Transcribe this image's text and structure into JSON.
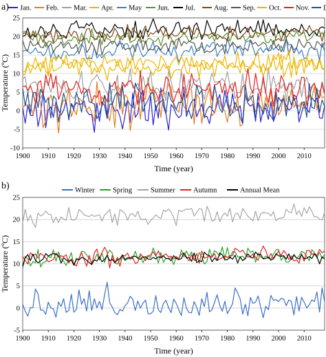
{
  "chart_data": [
    {
      "panel_label": "a)",
      "type": "line",
      "xlabel": "Time (year)",
      "ylabel": "Temperature (ºC)",
      "xlim": [
        1900,
        2018
      ],
      "ylim": [
        -10,
        25
      ],
      "x_ticks": [
        1900,
        1910,
        1920,
        1930,
        1940,
        1950,
        1960,
        1970,
        1980,
        1990,
        2000,
        2010
      ],
      "y_ticks": [
        -10,
        -5,
        0,
        5,
        10,
        15,
        20,
        25
      ],
      "grid": "horizontal",
      "legend_position": "top",
      "series": [
        {
          "name": "Jan.",
          "color": "#2b1fd1",
          "mean": 0,
          "amp": 2.5
        },
        {
          "name": "Feb.",
          "color": "#e67e22",
          "mean": 1.5,
          "amp": 2.8
        },
        {
          "name": "Mar.",
          "color": "#a0a0a0",
          "mean": 6,
          "amp": 2.2
        },
        {
          "name": "Apr.",
          "color": "#e6b800",
          "mean": 11.5,
          "amp": 1.4
        },
        {
          "name": "May",
          "color": "#3a7fc1",
          "mean": 16,
          "amp": 1.3
        },
        {
          "name": "Jun.",
          "color": "#5f8f2a",
          "mean": 19.5,
          "amp": 1.2
        },
        {
          "name": "Jul.",
          "color": "#000000",
          "mean": 21.5,
          "amp": 1.2
        },
        {
          "name": "Aug.",
          "color": "#7a4a1a",
          "mean": 20.5,
          "amp": 1.2
        },
        {
          "name": "Sep.",
          "color": "#555555",
          "mean": 17,
          "amp": 1.2
        },
        {
          "name": "Oct.",
          "color": "#f0b400",
          "mean": 12,
          "amp": 1.6
        },
        {
          "name": "Nov.",
          "color": "#e02020",
          "mean": 5.5,
          "amp": 2.2
        },
        {
          "name": "Dec.",
          "color": "#1f4e8c",
          "mean": 1.5,
          "amp": 2.5
        }
      ]
    },
    {
      "panel_label": "b)",
      "type": "line",
      "xlabel": "Time (year)",
      "ylabel": "Temperature (ºC)",
      "xlim": [
        1900,
        2018
      ],
      "ylim": [
        -5,
        25
      ],
      "x_ticks": [
        1900,
        1910,
        1920,
        1930,
        1940,
        1950,
        1960,
        1970,
        1980,
        1990,
        2000,
        2010
      ],
      "y_ticks": [
        -5,
        0,
        5,
        10,
        15,
        20,
        25
      ],
      "grid": "horizontal",
      "legend_position": "top",
      "series": [
        {
          "name": "Winter",
          "color": "#3a6fc4",
          "mean": 1.0,
          "amp": 1.8
        },
        {
          "name": "Spring",
          "color": "#2ca02c",
          "mean": 11.3,
          "amp": 0.9
        },
        {
          "name": "Summer",
          "color": "#a6a6a6",
          "mean": 20.5,
          "amp": 1.0
        },
        {
          "name": "Autumn",
          "color": "#e02020",
          "mean": 11.5,
          "amp": 1.0
        },
        {
          "name": "Annual Mean",
          "color": "#000000",
          "mean": 11.0,
          "amp": 0.6
        }
      ]
    }
  ]
}
